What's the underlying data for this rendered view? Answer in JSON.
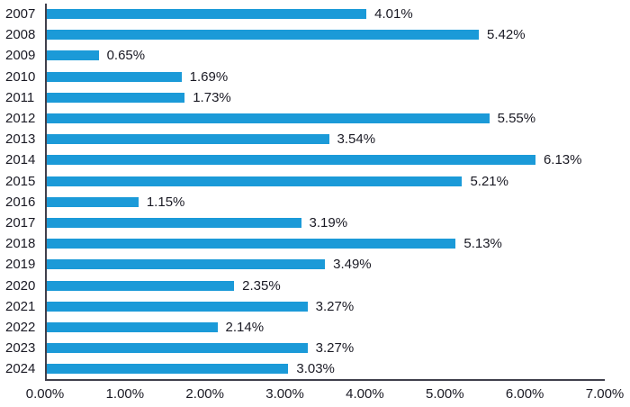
{
  "chart_data": {
    "type": "bar",
    "orientation": "horizontal",
    "title": "",
    "xlabel": "",
    "ylabel": "",
    "categories": [
      "2007",
      "2008",
      "2009",
      "2010",
      "2011",
      "2012",
      "2013",
      "2014",
      "2015",
      "2016",
      "2017",
      "2018",
      "2019",
      "2020",
      "2021",
      "2022",
      "2023",
      "2024"
    ],
    "values": [
      4.01,
      5.42,
      0.65,
      1.69,
      1.73,
      5.55,
      3.54,
      6.13,
      5.21,
      1.15,
      3.19,
      5.13,
      3.49,
      2.35,
      3.27,
      2.14,
      3.27,
      3.03
    ],
    "data_labels": [
      "4.01%",
      "5.42%",
      "0.65%",
      "1.69%",
      "1.73%",
      "5.55%",
      "3.54%",
      "6.13%",
      "5.21%",
      "1.15%",
      "3.19%",
      "5.13%",
      "3.49%",
      "2.35%",
      "3.27%",
      "2.14%",
      "3.27%",
      "3.03%"
    ],
    "xlim": [
      0,
      7
    ],
    "x_ticks": [
      "0.00%",
      "1.00%",
      "2.00%",
      "3.00%",
      "4.00%",
      "5.00%",
      "6.00%",
      "7.00%"
    ],
    "grid": false,
    "legend_position": "none",
    "bar_color": "#1b9ad8",
    "axis_color": "#40404c",
    "text_color": "#1a1a24"
  }
}
